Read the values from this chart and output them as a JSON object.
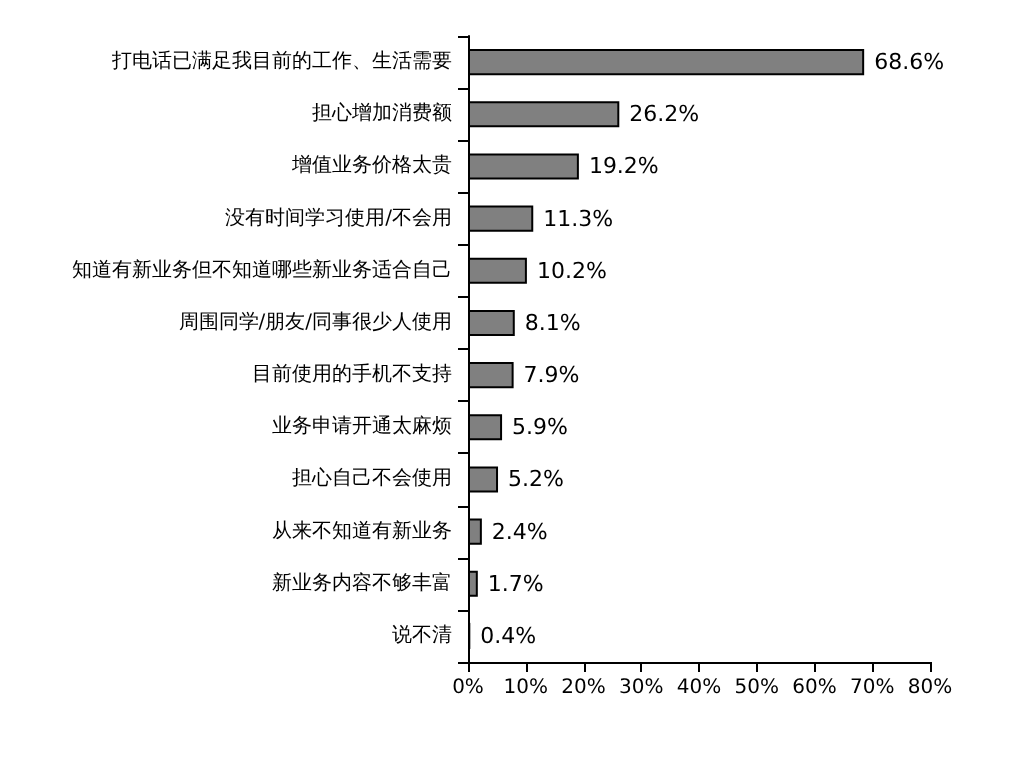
{
  "chart_data": {
    "type": "bar",
    "orientation": "horizontal",
    "categories": [
      "打电话已满足我目前的工作、生活需要",
      "担心增加消费额",
      "增值业务价格太贵",
      "没有时间学习使用/不会用",
      "知道有新业务但不知道哪些新业务适合自己",
      "周围同学/朋友/同事很少人使用",
      "目前使用的手机不支持",
      "业务申请开通太麻烦",
      "担心自己不会使用",
      "从来不知道有新业务",
      "新业务内容不够丰富",
      "说不清"
    ],
    "values": [
      68.6,
      26.2,
      19.2,
      11.3,
      10.2,
      8.1,
      7.9,
      5.9,
      5.2,
      2.4,
      1.7,
      0.4
    ],
    "value_labels": [
      "68.6%",
      "26.2%",
      "19.2%",
      "11.3%",
      "10.2%",
      "8.1%",
      "7.9%",
      "5.9%",
      "5.2%",
      "2.4%",
      "1.7%",
      "0.4%"
    ],
    "color": "#808080",
    "xlim": [
      0,
      80
    ],
    "xticks": [
      {
        "value": 0,
        "label": "0%"
      },
      {
        "value": 10,
        "label": "10%"
      },
      {
        "value": 20,
        "label": "20%"
      },
      {
        "value": 30,
        "label": "30%"
      },
      {
        "value": 40,
        "label": "40%"
      },
      {
        "value": 50,
        "label": "50%"
      },
      {
        "value": 60,
        "label": "60%"
      },
      {
        "value": 70,
        "label": "70%"
      },
      {
        "value": 80,
        "label": "80%"
      }
    ],
    "grid": false
  }
}
